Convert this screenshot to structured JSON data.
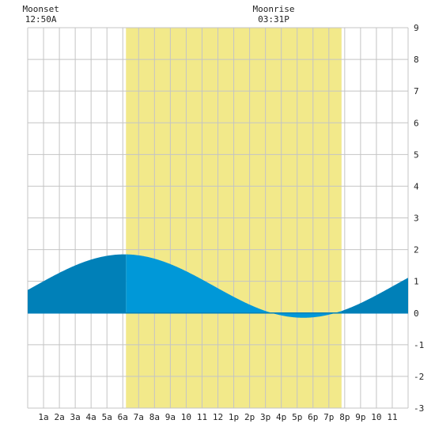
{
  "chart_data": {
    "type": "area",
    "title": "",
    "xlabel": "",
    "ylabel": "",
    "x_unit": "hour of day",
    "xlim": [
      0,
      24
    ],
    "ylim": [
      -3,
      9
    ],
    "y_ticks": [
      -3,
      -2,
      -1,
      0,
      1,
      2,
      3,
      4,
      5,
      6,
      7,
      8,
      9
    ],
    "x_ticks": [
      {
        "hour": 1,
        "label": "1a"
      },
      {
        "hour": 2,
        "label": "2a"
      },
      {
        "hour": 3,
        "label": "3a"
      },
      {
        "hour": 4,
        "label": "4a"
      },
      {
        "hour": 5,
        "label": "5a"
      },
      {
        "hour": 6,
        "label": "6a"
      },
      {
        "hour": 7,
        "label": "7a"
      },
      {
        "hour": 8,
        "label": "8a"
      },
      {
        "hour": 9,
        "label": "9a"
      },
      {
        "hour": 10,
        "label": "10"
      },
      {
        "hour": 11,
        "label": "11"
      },
      {
        "hour": 12,
        "label": "12"
      },
      {
        "hour": 13,
        "label": "1p"
      },
      {
        "hour": 14,
        "label": "2p"
      },
      {
        "hour": 15,
        "label": "3p"
      },
      {
        "hour": 16,
        "label": "4p"
      },
      {
        "hour": 17,
        "label": "5p"
      },
      {
        "hour": 18,
        "label": "6p"
      },
      {
        "hour": 19,
        "label": "7p"
      },
      {
        "hour": 20,
        "label": "8p"
      },
      {
        "hour": 21,
        "label": "9p"
      },
      {
        "hour": 22,
        "label": "10"
      },
      {
        "hour": 23,
        "label": "11"
      }
    ],
    "series": [
      {
        "tide_high": {
          "hour": 6.1,
          "value": 1.85
        },
        "tide_low": {
          "hour": 17.4,
          "value": -0.15
        },
        "values": [
          {
            "x": 0,
            "y": 1.03
          },
          {
            "x": 1,
            "y": 1.25
          },
          {
            "x": 2,
            "y": 1.45
          },
          {
            "x": 3,
            "y": 1.62
          },
          {
            "x": 4,
            "y": 1.75
          },
          {
            "x": 5,
            "y": 1.83
          },
          {
            "x": 6,
            "y": 1.85
          },
          {
            "x": 7,
            "y": 1.8
          },
          {
            "x": 8,
            "y": 1.65
          },
          {
            "x": 9,
            "y": 1.42
          },
          {
            "x": 10,
            "y": 1.15
          },
          {
            "x": 11,
            "y": 0.85
          },
          {
            "x": 12,
            "y": 0.55
          },
          {
            "x": 13,
            "y": 0.3
          },
          {
            "x": 14,
            "y": 0.1
          },
          {
            "x": 15,
            "y": -0.03
          },
          {
            "x": 16,
            "y": -0.12
          },
          {
            "x": 17,
            "y": -0.15
          },
          {
            "x": 18,
            "y": -0.12
          },
          {
            "x": 19,
            "y": -0.05
          },
          {
            "x": 20,
            "y": 0.05
          },
          {
            "x": 21,
            "y": 0.22
          },
          {
            "x": 22,
            "y": 0.42
          },
          {
            "x": 23,
            "y": 0.65
          },
          {
            "x": 24,
            "y": 0.88
          }
        ]
      }
    ],
    "daylight": {
      "start_hour": 6.2,
      "end_hour": 19.8
    },
    "annotations": [
      {
        "id": "moonset",
        "title": "Moonset",
        "time": "12:50A",
        "hour": 0.83
      },
      {
        "id": "moonrise",
        "title": "Moonrise",
        "time": "03:31P",
        "hour": 15.52
      }
    ],
    "grid": true,
    "colors": {
      "night_fill": "#0080b8",
      "day_fill": "#0098d8",
      "daylight_band": "#f2e98a",
      "grid": "#c4c4c4",
      "background": "#ffffff",
      "text": "#222222"
    }
  }
}
